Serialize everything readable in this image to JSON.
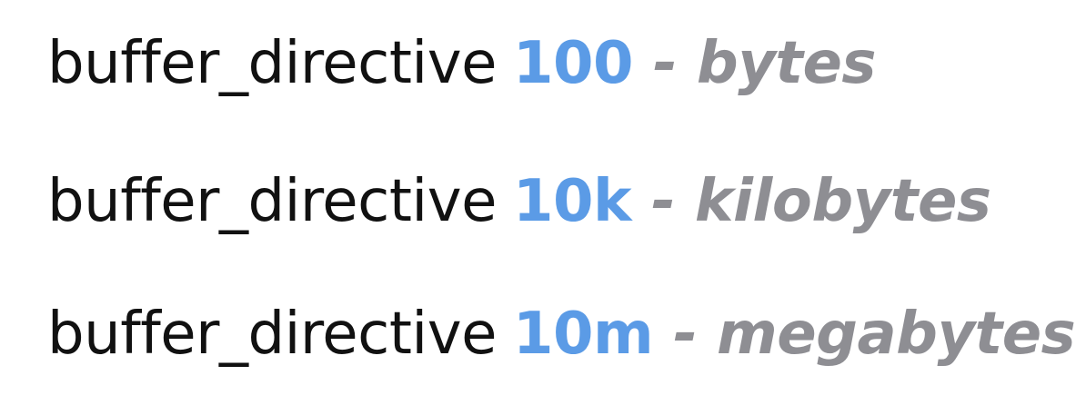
{
  "colors": {
    "keyword": "#111111",
    "value": "#5b9be6",
    "unit": "#8e8e93"
  },
  "lines": [
    {
      "keyword": "buffer_directive",
      "value": "100",
      "unit": "- bytes"
    },
    {
      "keyword": "buffer_directive",
      "value": "10k",
      "unit": "- kilobytes"
    },
    {
      "keyword": "buffer_directive",
      "value": "10m",
      "unit": "- megabytes"
    }
  ]
}
